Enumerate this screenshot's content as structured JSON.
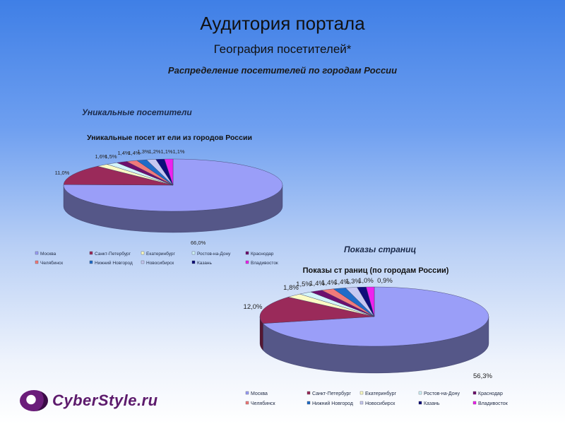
{
  "header": {
    "title": "Аудитория портала",
    "subtitle": "География посетителей*",
    "heading": "Распределение посетителей по городам России"
  },
  "sections": {
    "unique": "Уникальные посетители",
    "pageviews": "Показы страниц"
  },
  "logo": {
    "text": "CyberStyle.ru"
  },
  "chart_data": [
    {
      "type": "pie",
      "title": "Уникальные посет ит ели из городов России",
      "categories": [
        "Москва",
        "Санкт-Петербург",
        "Екатеринбург",
        "Ростов-на-Дону",
        "Краснодар",
        "Челябинск",
        "Нижний Новгород",
        "Новосибирск",
        "Казань",
        "Владивосток"
      ],
      "values": [
        66.0,
        11.0,
        1.6,
        1.5,
        1.4,
        1.4,
        1.3,
        1.2,
        1.1,
        1.1
      ],
      "data_labels": [
        "66,0%",
        "11,0%",
        "1,6%",
        "1,5%",
        "1,4%",
        "1,4%",
        "1,3%",
        "1,2%",
        "1,1%",
        "1,1%"
      ],
      "colors": [
        "#9a9ef8",
        "#9a2a5a",
        "#fbfbc4",
        "#d2f4fb",
        "#6e0f6e",
        "#f07a7a",
        "#1f6cc8",
        "#c6c8f2",
        "#0e0e7a",
        "#ee22ee"
      ],
      "legend_position": "bottom"
    },
    {
      "type": "pie",
      "title": "Показы ст раниц (по городам России)",
      "categories": [
        "Москва",
        "Санкт-Петербург",
        "Екатеринбург",
        "Ростов-на-Дону",
        "Краснодар",
        "Челябинск",
        "Нижний Новгород",
        "Новосибирск",
        "Казань",
        "Владивосток"
      ],
      "values": [
        56.3,
        12.0,
        1.8,
        1.5,
        1.4,
        1.4,
        1.4,
        1.3,
        1.0,
        0.9
      ],
      "data_labels": [
        "56,3%",
        "12,0%",
        "1,8%",
        "1,5%",
        "1,4%",
        "1,4%",
        "1,4%",
        "1,3%",
        "1,0%",
        "0,9%"
      ],
      "colors": [
        "#9a9ef8",
        "#9a2a5a",
        "#fbfbc4",
        "#d2f4fb",
        "#6e0f6e",
        "#f07a7a",
        "#1f6cc8",
        "#c6c8f2",
        "#0e0e7a",
        "#ee22ee"
      ],
      "legend_position": "bottom"
    }
  ]
}
